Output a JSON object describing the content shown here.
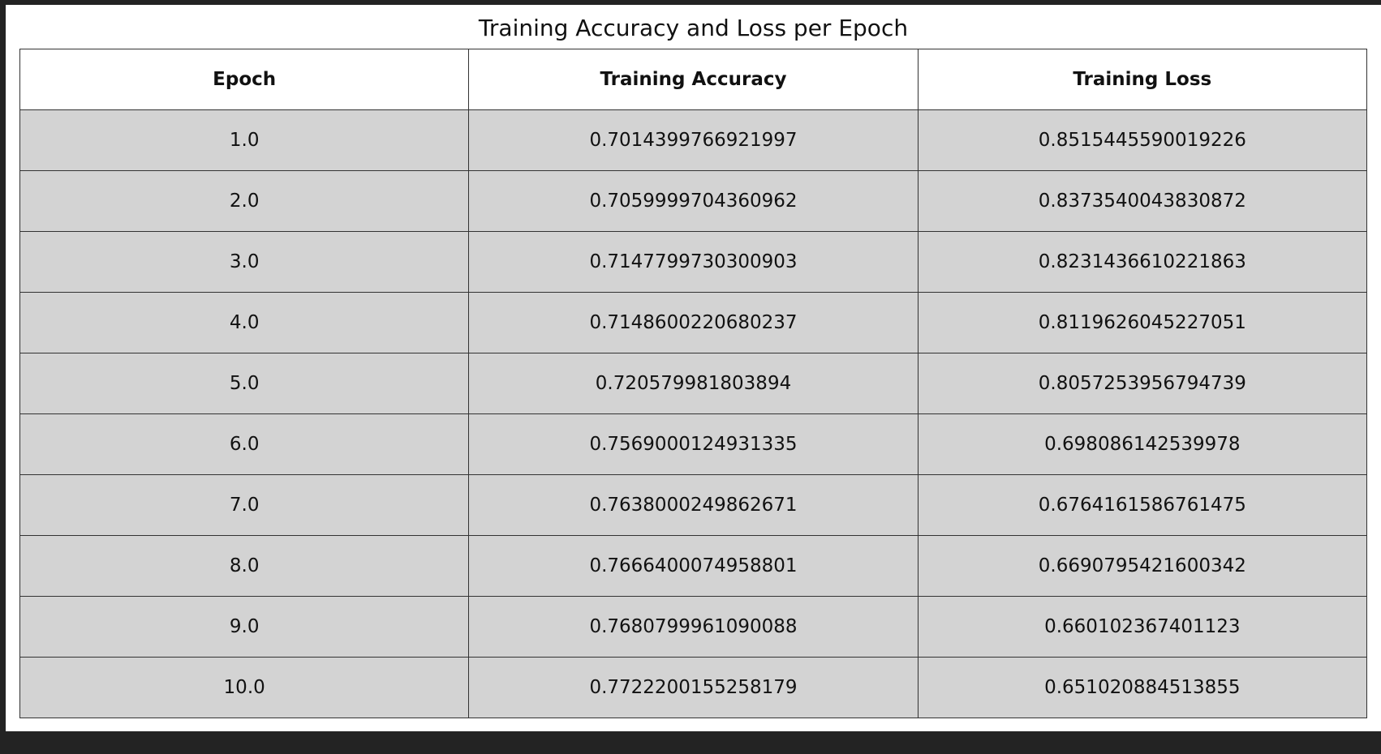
{
  "chart_data": {
    "type": "table",
    "title": "Training Accuracy and Loss per Epoch",
    "columns": [
      "Epoch",
      "Training Accuracy",
      "Training Loss"
    ],
    "rows": [
      [
        "1.0",
        "0.7014399766921997",
        "0.8515445590019226"
      ],
      [
        "2.0",
        "0.7059999704360962",
        "0.8373540043830872"
      ],
      [
        "3.0",
        "0.7147799730300903",
        "0.8231436610221863"
      ],
      [
        "4.0",
        "0.7148600220680237",
        "0.8119626045227051"
      ],
      [
        "5.0",
        "0.720579981803894",
        "0.8057253956794739"
      ],
      [
        "6.0",
        "0.7569000124931335",
        "0.698086142539978"
      ],
      [
        "7.0",
        "0.7638000249862671",
        "0.6764161586761475"
      ],
      [
        "8.0",
        "0.7666400074958801",
        "0.6690795421600342"
      ],
      [
        "9.0",
        "0.7680799961090088",
        "0.660102367401123"
      ],
      [
        "10.0",
        "0.7722200155258179",
        "0.651020884513855"
      ]
    ],
    "colors": {
      "header_bg": "#ffffff",
      "cell_bg": "#d3d3d3",
      "border": "#333333",
      "frame": "#232323"
    }
  }
}
